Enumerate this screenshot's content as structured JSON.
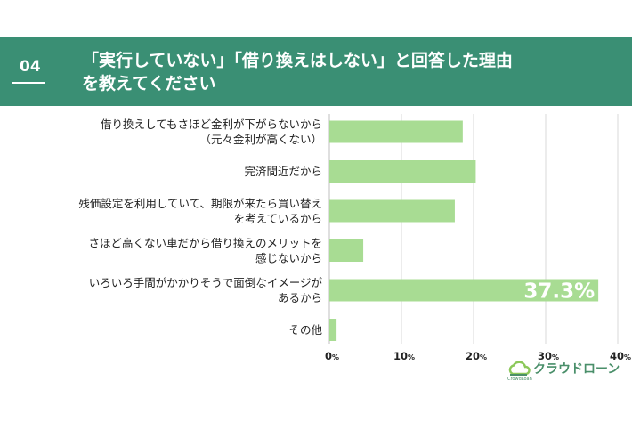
{
  "header": {
    "number": "04",
    "title_line1": "「実行していない」「借り換えはしない」と回答した理由",
    "title_line2": "を教えてください"
  },
  "chart_data": {
    "type": "bar",
    "orientation": "horizontal",
    "categories": [
      [
        "借り換えしてもさほど金利が下がらないから",
        "（元々金利が高くない）"
      ],
      [
        "完済間近だから"
      ],
      [
        "残価設定を利用していて、期限が来たら買い替え",
        "を考えているから"
      ],
      [
        "さほど高くない車だから借り換えのメリットを",
        "感じないから"
      ],
      [
        "いろいろ手間がかかりそうで面倒なイメージが",
        "あるから"
      ],
      [
        "その他"
      ]
    ],
    "values": [
      18.5,
      20.3,
      17.4,
      4.7,
      37.3,
      1.0
    ],
    "data_labels": [
      "",
      "",
      "",
      "",
      "37.3%",
      ""
    ],
    "xlim": [
      0,
      40
    ],
    "ticks": [
      {
        "num": "0",
        "unit": "%"
      },
      {
        "num": "10",
        "unit": "%"
      },
      {
        "num": "20",
        "unit": "%"
      },
      {
        "num": "30",
        "unit": "%"
      },
      {
        "num": "40",
        "unit": "%"
      }
    ],
    "grid": true,
    "bar_color": "#a8dc93",
    "grid_color": "#d9d9d9"
  },
  "logo": {
    "name": "クラウドローン",
    "sub": "CrowdLoan",
    "color": "#4a8f6a"
  }
}
